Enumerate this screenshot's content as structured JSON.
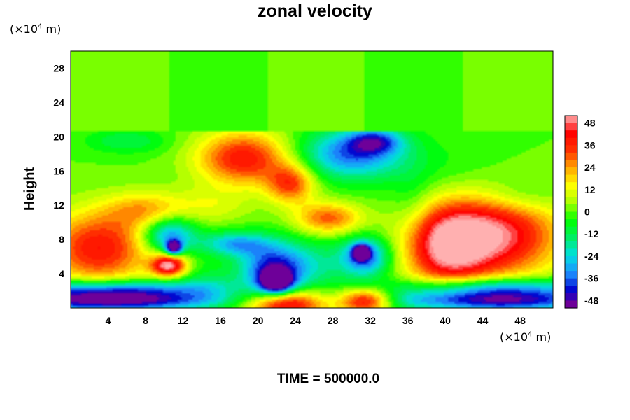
{
  "chart_data": {
    "type": "heatmap",
    "title": "zonal velocity",
    "ylabel": "Height",
    "xlabel": "",
    "x_unit": {
      "prefix": "(×10",
      "exp": "4",
      "suffix": " m)"
    },
    "y_unit": {
      "prefix": "(×10",
      "exp": "4",
      "suffix": " m)"
    },
    "footer": "TIME = 500000.0",
    "xlim": [
      0,
      51.5
    ],
    "ylim": [
      0,
      30
    ],
    "x_ticks": [
      "4",
      "8",
      "12",
      "16",
      "20",
      "24",
      "28",
      "32",
      "36",
      "40",
      "44",
      "48"
    ],
    "y_ticks": [
      "4",
      "8",
      "12",
      "16",
      "20",
      "24",
      "28"
    ],
    "colorbar": {
      "range": [
        -52,
        52
      ],
      "ticks": [
        "48",
        "36",
        "24",
        "12",
        "0",
        "-12",
        "-24",
        "-36",
        "-48"
      ],
      "colors": [
        "#8b008b",
        "#0000cd",
        "#1e90ff",
        "#00e0e0",
        "#00ee66",
        "#00ff00",
        "#aaff00",
        "#ffff00",
        "#ffa500",
        "#ff3300",
        "#ff0000",
        "#ffb0b0"
      ]
    },
    "background_value": 0,
    "features": [
      {
        "x": 18.5,
        "y": 17.5,
        "sx": 3.5,
        "sy": 2.2,
        "value": 40
      },
      {
        "x": 23.5,
        "y": 14.5,
        "sx": 1.8,
        "sy": 1.6,
        "value": 32
      },
      {
        "x": 27.5,
        "y": 10.5,
        "sx": 2.5,
        "sy": 1.3,
        "value": 30
      },
      {
        "x": 30.0,
        "y": 18.0,
        "sx": 4.0,
        "sy": 2.0,
        "value": -36
      },
      {
        "x": 32.5,
        "y": 19.5,
        "sx": 2.0,
        "sy": 1.0,
        "value": -28
      },
      {
        "x": 3.0,
        "y": 7.0,
        "sx": 4.0,
        "sy": 3.0,
        "value": 40
      },
      {
        "x": 45.0,
        "y": 8.5,
        "sx": 5.0,
        "sy": 3.5,
        "value": 50
      },
      {
        "x": 40.0,
        "y": 7.0,
        "sx": 3.0,
        "sy": 3.5,
        "value": 36
      },
      {
        "x": 10.5,
        "y": 5.0,
        "sx": 1.3,
        "sy": 0.9,
        "value": 52
      },
      {
        "x": 23.0,
        "y": 0.5,
        "sx": 3.0,
        "sy": 1.2,
        "value": 50
      },
      {
        "x": 31.5,
        "y": 0.8,
        "sx": 2.0,
        "sy": 1.0,
        "value": 48
      },
      {
        "x": 10.5,
        "y": 8.5,
        "sx": 2.0,
        "sy": 1.5,
        "value": -36
      },
      {
        "x": 11.0,
        "y": 7.0,
        "sx": 0.6,
        "sy": 0.6,
        "value": -50
      },
      {
        "x": 21.5,
        "y": 4.5,
        "sx": 2.5,
        "sy": 2.2,
        "value": -40
      },
      {
        "x": 22.0,
        "y": 3.0,
        "sx": 1.2,
        "sy": 1.0,
        "value": -50
      },
      {
        "x": 17.5,
        "y": 7.5,
        "sx": 2.5,
        "sy": 1.0,
        "value": -28
      },
      {
        "x": 31.5,
        "y": 6.0,
        "sx": 1.8,
        "sy": 1.6,
        "value": -38
      },
      {
        "x": 31.0,
        "y": 6.5,
        "sx": 0.6,
        "sy": 0.6,
        "value": -50
      },
      {
        "x": 4.0,
        "y": 0.8,
        "sx": 8.0,
        "sy": 0.8,
        "value": -52
      },
      {
        "x": 4.0,
        "y": 2.2,
        "sx": 8.0,
        "sy": 0.8,
        "value": -36
      },
      {
        "x": 45.0,
        "y": 0.9,
        "sx": 8.0,
        "sy": 0.9,
        "value": -52
      },
      {
        "x": 45.0,
        "y": 2.5,
        "sx": 7.0,
        "sy": 0.8,
        "value": -30
      },
      {
        "x": 8.0,
        "y": 11.5,
        "sx": 3.0,
        "sy": 1.5,
        "value": 20
      },
      {
        "x": 15.0,
        "y": 12.0,
        "sx": 3.0,
        "sy": 1.5,
        "value": 10
      },
      {
        "x": 6.0,
        "y": 19.5,
        "sx": 3.0,
        "sy": 1.0,
        "value": -12
      },
      {
        "x": 40.0,
        "y": 15.0,
        "sx": 5.0,
        "sy": 3.0,
        "value": -6
      },
      {
        "x": 48.0,
        "y": 13.0,
        "sx": 3.0,
        "sy": 1.5,
        "value": -10
      },
      {
        "x": 26.0,
        "y": 5.0,
        "sx": 3.0,
        "sy": 2.0,
        "value": -14
      },
      {
        "x": 14.5,
        "y": 3.0,
        "sx": 2.0,
        "sy": 1.5,
        "value": -10
      },
      {
        "x": 36.5,
        "y": 12.0,
        "sx": 1.5,
        "sy": 3.0,
        "value": -6
      }
    ]
  }
}
